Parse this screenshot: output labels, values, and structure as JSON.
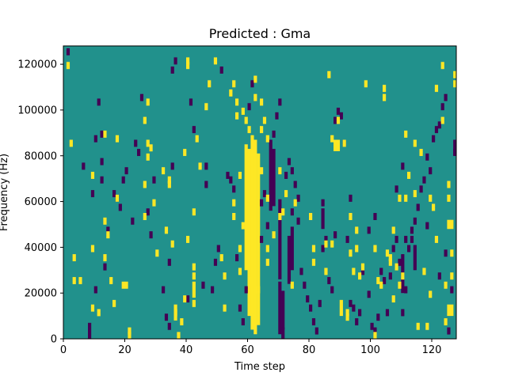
{
  "chart_data": {
    "type": "heatmap",
    "title": "Predicted : Gma",
    "xlabel": "Time step",
    "ylabel": "Frequency (Hz)",
    "xlim": [
      0,
      128
    ],
    "ylim": [
      0,
      128000
    ],
    "x_ticks": [
      0,
      20,
      40,
      60,
      80,
      100,
      120
    ],
    "x_tick_labels": [
      "0",
      "20",
      "40",
      "60",
      "80",
      "100",
      "120"
    ],
    "y_ticks": [
      0,
      20000,
      40000,
      60000,
      80000,
      100000,
      120000
    ],
    "y_tick_labels": [
      "0",
      "20000",
      "40000",
      "60000",
      "80000",
      "100000",
      "120000"
    ],
    "n_time_steps": 128,
    "n_frequency_bins": 128,
    "colormap": "viridis",
    "value_levels": {
      "low": 0,
      "mid": 0.5,
      "high": 1
    },
    "colors": {
      "low": "#440154",
      "mid": "#21918c",
      "high": "#fde725"
    },
    "background_value": 0.5,
    "high_bands": [
      {
        "t": 60,
        "f0": 10,
        "f1": 82
      },
      {
        "t": 61,
        "f0": 4,
        "f1": 88
      },
      {
        "t": 62,
        "f0": 2,
        "f1": 86
      },
      {
        "t": 63,
        "f0": 6,
        "f1": 80
      },
      {
        "t": 59,
        "f0": 30,
        "f1": 84
      },
      {
        "t": 88,
        "f0": 82,
        "f1": 86
      },
      {
        "t": 89,
        "f0": 82,
        "f1": 86
      },
      {
        "t": 126,
        "f0": 10,
        "f1": 14
      },
      {
        "t": 125,
        "f0": 10,
        "f1": 14
      },
      {
        "t": 126,
        "f0": 48,
        "f1": 51
      },
      {
        "t": 125,
        "f0": 48,
        "f1": 51
      },
      {
        "t": 42,
        "f0": 18,
        "f1": 24
      },
      {
        "t": 36,
        "f0": 8,
        "f1": 14
      },
      {
        "t": 90,
        "f0": 10,
        "f1": 16
      }
    ],
    "low_bands": [
      {
        "t": 70,
        "f0": 2,
        "f1": 24
      },
      {
        "t": 70,
        "f0": 26,
        "f1": 60
      },
      {
        "t": 71,
        "f0": 4,
        "f1": 20
      },
      {
        "t": 67,
        "f0": 56,
        "f1": 86
      },
      {
        "t": 68,
        "f0": 58,
        "f1": 82
      },
      {
        "t": 73,
        "f0": 24,
        "f1": 44
      },
      {
        "t": 74,
        "f0": 30,
        "f1": 48
      },
      {
        "t": 8,
        "f0": 0,
        "f1": 6
      },
      {
        "t": 114,
        "f0": 30,
        "f1": 40
      },
      {
        "t": 127,
        "f0": 80,
        "f1": 86
      },
      {
        "t": 84,
        "f0": 48,
        "f1": 56
      },
      {
        "t": 110,
        "f0": 20,
        "f1": 36
      },
      {
        "t": 71,
        "f0": 0,
        "f1": 4
      }
    ],
    "high_cells": [
      [
        1,
        120
      ],
      [
        2,
        86
      ],
      [
        3,
        26
      ],
      [
        3,
        36
      ],
      [
        5,
        26
      ],
      [
        9,
        72
      ],
      [
        9,
        40
      ],
      [
        9,
        14
      ],
      [
        11,
        12
      ],
      [
        13,
        90
      ],
      [
        13,
        52
      ],
      [
        13,
        36
      ],
      [
        14,
        46
      ],
      [
        15,
        26
      ],
      [
        16,
        16
      ],
      [
        17,
        88
      ],
      [
        17,
        62
      ],
      [
        19,
        24
      ],
      [
        20,
        24
      ],
      [
        21,
        2
      ],
      [
        21,
        4
      ],
      [
        26,
        68
      ],
      [
        26,
        54
      ],
      [
        27,
        86
      ],
      [
        27,
        80
      ],
      [
        28,
        84
      ],
      [
        29,
        60
      ],
      [
        30,
        38
      ],
      [
        32,
        74
      ],
      [
        33,
        48
      ],
      [
        34,
        68
      ],
      [
        34,
        70
      ],
      [
        36,
        12
      ],
      [
        37,
        2
      ],
      [
        38,
        8
      ],
      [
        39,
        82
      ],
      [
        40,
        44
      ],
      [
        40,
        120
      ],
      [
        40,
        122
      ],
      [
        42,
        28
      ],
      [
        42,
        32
      ],
      [
        42,
        16
      ],
      [
        43,
        88
      ],
      [
        44,
        76
      ],
      [
        46,
        102
      ],
      [
        47,
        112
      ],
      [
        49,
        122
      ],
      [
        51,
        36
      ],
      [
        52,
        28
      ],
      [
        54,
        108
      ],
      [
        55,
        112
      ],
      [
        55,
        60
      ],
      [
        55,
        54
      ],
      [
        56,
        104
      ],
      [
        56,
        98
      ],
      [
        57,
        30
      ],
      [
        57,
        40
      ],
      [
        58,
        50
      ],
      [
        58,
        100
      ],
      [
        59,
        96
      ],
      [
        60,
        92
      ],
      [
        62,
        106
      ],
      [
        62,
        114
      ],
      [
        64,
        74
      ],
      [
        64,
        92
      ],
      [
        65,
        96
      ],
      [
        66,
        88
      ],
      [
        66,
        40
      ],
      [
        66,
        34
      ],
      [
        68,
        46
      ],
      [
        70,
        54
      ],
      [
        71,
        56
      ],
      [
        72,
        64
      ],
      [
        74,
        24
      ],
      [
        75,
        60
      ],
      [
        80,
        54
      ],
      [
        81,
        34
      ],
      [
        81,
        40
      ],
      [
        85,
        30
      ],
      [
        85,
        42
      ],
      [
        86,
        116
      ],
      [
        87,
        42
      ],
      [
        87,
        88
      ],
      [
        89,
        96
      ],
      [
        91,
        86
      ],
      [
        92,
        10
      ],
      [
        92,
        12
      ],
      [
        93,
        38
      ],
      [
        93,
        54
      ],
      [
        94,
        30
      ],
      [
        95,
        40
      ],
      [
        95,
        48
      ],
      [
        96,
        28
      ],
      [
        97,
        32
      ],
      [
        98,
        112
      ],
      [
        101,
        2
      ],
      [
        101,
        40
      ],
      [
        102,
        26
      ],
      [
        103,
        24
      ],
      [
        104,
        106
      ],
      [
        104,
        110
      ],
      [
        105,
        38
      ],
      [
        106,
        34
      ],
      [
        106,
        36
      ],
      [
        107,
        18
      ],
      [
        107,
        48
      ],
      [
        108,
        32
      ],
      [
        109,
        24
      ],
      [
        109,
        62
      ],
      [
        110,
        28
      ],
      [
        111,
        62
      ],
      [
        111,
        90
      ],
      [
        112,
        72
      ],
      [
        114,
        64
      ],
      [
        114,
        86
      ],
      [
        115,
        6
      ],
      [
        116,
        82
      ],
      [
        117,
        30
      ],
      [
        119,
        62
      ],
      [
        120,
        58
      ],
      [
        121,
        44
      ],
      [
        121,
        110
      ],
      [
        123,
        96
      ],
      [
        123,
        120
      ],
      [
        124,
        8
      ],
      [
        124,
        24
      ],
      [
        125,
        62
      ],
      [
        125,
        68
      ],
      [
        126,
        28
      ],
      [
        126,
        38
      ],
      [
        127,
        112
      ],
      [
        127,
        116
      ],
      [
        118,
        6
      ],
      [
        119,
        20
      ],
      [
        39,
        18
      ],
      [
        26,
        96
      ],
      [
        27,
        104
      ],
      [
        42,
        56
      ],
      [
        60,
        26
      ],
      [
        63,
        22
      ],
      [
        70,
        74
      ],
      [
        35,
        42
      ],
      [
        52,
        14
      ],
      [
        57,
        72
      ],
      [
        66,
        62
      ],
      [
        64,
        104
      ]
    ],
    "low_cells": [
      [
        1,
        126
      ],
      [
        6,
        76
      ],
      [
        9,
        64
      ],
      [
        10,
        88
      ],
      [
        10,
        22
      ],
      [
        11,
        104
      ],
      [
        12,
        90
      ],
      [
        12,
        70
      ],
      [
        13,
        32
      ],
      [
        14,
        48
      ],
      [
        16,
        64
      ],
      [
        17,
        62
      ],
      [
        18,
        58
      ],
      [
        19,
        70
      ],
      [
        22,
        52
      ],
      [
        23,
        86
      ],
      [
        24,
        82
      ],
      [
        25,
        106
      ],
      [
        27,
        56
      ],
      [
        28,
        46
      ],
      [
        29,
        70
      ],
      [
        32,
        22
      ],
      [
        33,
        10
      ],
      [
        34,
        34
      ],
      [
        34,
        6
      ],
      [
        35,
        118
      ],
      [
        36,
        122
      ],
      [
        40,
        18
      ],
      [
        41,
        104
      ],
      [
        42,
        92
      ],
      [
        45,
        24
      ],
      [
        46,
        76
      ],
      [
        46,
        68
      ],
      [
        48,
        22
      ],
      [
        49,
        34
      ],
      [
        50,
        40
      ],
      [
        51,
        118
      ],
      [
        53,
        72
      ],
      [
        54,
        70
      ],
      [
        55,
        66
      ],
      [
        56,
        36
      ],
      [
        57,
        14
      ],
      [
        58,
        8
      ],
      [
        59,
        22
      ],
      [
        60,
        102
      ],
      [
        61,
        112
      ],
      [
        64,
        60
      ],
      [
        65,
        64
      ],
      [
        66,
        50
      ],
      [
        68,
        90
      ],
      [
        69,
        98
      ],
      [
        70,
        104
      ],
      [
        72,
        72
      ],
      [
        73,
        78
      ],
      [
        74,
        74
      ],
      [
        75,
        68
      ],
      [
        76,
        62
      ],
      [
        77,
        30
      ],
      [
        78,
        24
      ],
      [
        79,
        18
      ],
      [
        80,
        14
      ],
      [
        81,
        8
      ],
      [
        82,
        4
      ],
      [
        83,
        16
      ],
      [
        84,
        40
      ],
      [
        85,
        44
      ],
      [
        86,
        26
      ],
      [
        87,
        22
      ],
      [
        88,
        96
      ],
      [
        89,
        100
      ],
      [
        90,
        98
      ],
      [
        91,
        86
      ],
      [
        92,
        44
      ],
      [
        93,
        16
      ],
      [
        94,
        14
      ],
      [
        95,
        8
      ],
      [
        96,
        12
      ],
      [
        97,
        30
      ],
      [
        99,
        20
      ],
      [
        100,
        6
      ],
      [
        101,
        4
      ],
      [
        102,
        10
      ],
      [
        103,
        30
      ],
      [
        104,
        26
      ],
      [
        105,
        12
      ],
      [
        106,
        28
      ],
      [
        107,
        40
      ],
      [
        108,
        44
      ],
      [
        109,
        34
      ],
      [
        110,
        12
      ],
      [
        111,
        22
      ],
      [
        112,
        40
      ],
      [
        113,
        48
      ],
      [
        114,
        52
      ],
      [
        115,
        58
      ],
      [
        116,
        66
      ],
      [
        117,
        70
      ],
      [
        118,
        80
      ],
      [
        119,
        74
      ],
      [
        120,
        88
      ],
      [
        121,
        92
      ],
      [
        122,
        94
      ],
      [
        123,
        102
      ],
      [
        124,
        106
      ],
      [
        125,
        4
      ],
      [
        126,
        22
      ],
      [
        127,
        82
      ],
      [
        12,
        78
      ],
      [
        20,
        74
      ],
      [
        35,
        76
      ],
      [
        64,
        44
      ],
      [
        74,
        56
      ],
      [
        76,
        52
      ],
      [
        84,
        60
      ],
      [
        88,
        46
      ],
      [
        93,
        62
      ],
      [
        101,
        54
      ],
      [
        99,
        48
      ],
      [
        108,
        66
      ],
      [
        110,
        76
      ],
      [
        111,
        44
      ],
      [
        113,
        44
      ],
      [
        118,
        50
      ],
      [
        122,
        28
      ],
      [
        124,
        38
      ]
    ]
  }
}
